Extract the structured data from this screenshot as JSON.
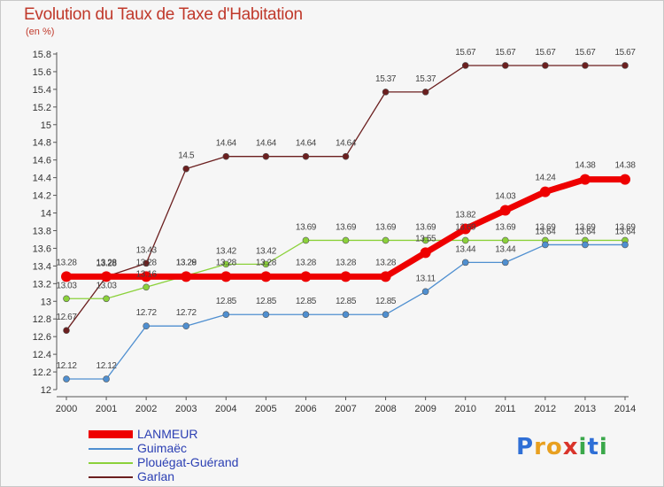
{
  "title": "Evolution du Taux de Taxe d'Habitation",
  "unit": "(en %)",
  "logo": {
    "text": "Proxiti",
    "letters": [
      {
        "ch": "P",
        "color": "#2f6fd6"
      },
      {
        "ch": "r",
        "color": "#e8a020"
      },
      {
        "ch": "o",
        "color": "#e8a020"
      },
      {
        "ch": "x",
        "color": "#d9342b"
      },
      {
        "ch": "i",
        "color": "#3aa84a"
      },
      {
        "ch": "t",
        "color": "#2f6fd6"
      },
      {
        "ch": "i",
        "color": "#3aa84a"
      }
    ]
  },
  "chart_data": {
    "type": "line",
    "title": "Evolution du Taux de Taxe d'Habitation",
    "ylabel": "(en %)",
    "xlabel": "",
    "x": [
      "2000",
      "2001",
      "2002",
      "2003",
      "2004",
      "2005",
      "2006",
      "2007",
      "2008",
      "2009",
      "2010",
      "2011",
      "2012",
      "2013",
      "2014"
    ],
    "ylim": [
      12,
      15.8
    ],
    "yticks": [
      "12",
      "12.2",
      "12.4",
      "12.6",
      "12.8",
      "13",
      "13.2",
      "13.4",
      "13.6",
      "13.8",
      "14",
      "14.2",
      "14.4",
      "14.6",
      "14.8",
      "15",
      "15.2",
      "15.4",
      "15.6",
      "15.8"
    ],
    "grid": false,
    "legend_position": "bottom-left",
    "series": [
      {
        "name": "Garlan",
        "color": "#6b1f1f",
        "values": [
          12.67,
          13.28,
          13.43,
          14.5,
          14.64,
          14.64,
          14.64,
          14.64,
          15.37,
          15.37,
          15.67,
          15.67,
          15.67,
          15.67,
          15.67
        ],
        "labels": [
          "12.67",
          "13.28",
          "13.43",
          "14.5",
          "14.64",
          "14.64",
          "14.64",
          "14.64",
          "15.37",
          "15.37",
          "15.67",
          "15.67",
          "15.67",
          "15.67",
          "15.67"
        ]
      },
      {
        "name": "Plouégat-Guérand",
        "color": "#8bd13a",
        "values": [
          13.03,
          13.03,
          13.16,
          13.29,
          13.42,
          13.42,
          13.69,
          13.69,
          13.69,
          13.69,
          13.69,
          13.69,
          13.69,
          13.69,
          13.69
        ],
        "labels": [
          "13.03",
          "13.03",
          "13.16",
          "13.29",
          "13.42",
          "13.42",
          "13.69",
          "13.69",
          "13.69",
          "13.69",
          "13.69",
          "13.69",
          "13.69",
          "13.69",
          "13.69"
        ]
      },
      {
        "name": "Guimaëc",
        "color": "#4f8fd0",
        "values": [
          12.12,
          12.12,
          12.72,
          12.72,
          12.85,
          12.85,
          12.85,
          12.85,
          12.85,
          13.11,
          13.44,
          13.44,
          13.64,
          13.64,
          13.64
        ],
        "labels": [
          "12.12",
          "12.12",
          "12.72",
          "12.72",
          "12.85",
          "12.85",
          "12.85",
          "12.85",
          "12.85",
          "13.11",
          "13.44",
          "13.44",
          "13.64",
          "13.64",
          "13.64"
        ]
      },
      {
        "name": "LANMEUR",
        "color": "#ee0000",
        "values": [
          13.28,
          13.28,
          13.28,
          13.28,
          13.28,
          13.28,
          13.28,
          13.28,
          13.28,
          13.55,
          13.82,
          14.03,
          14.24,
          14.38,
          14.38
        ],
        "labels": [
          "13.28",
          "13.28",
          "13.28",
          "13.28",
          "13.28",
          "13.28",
          "13.28",
          "13.28",
          "13.28",
          "13.55",
          "13.82",
          "14.03",
          "14.24",
          "14.38",
          "14.38"
        ]
      }
    ],
    "legend": [
      {
        "name": "LANMEUR",
        "color": "#ee0000"
      },
      {
        "name": "Guimaëc",
        "color": "#4f8fd0"
      },
      {
        "name": "Plouégat-Guérand",
        "color": "#8bd13a"
      },
      {
        "name": "Garlan",
        "color": "#6b1f1f"
      }
    ]
  }
}
